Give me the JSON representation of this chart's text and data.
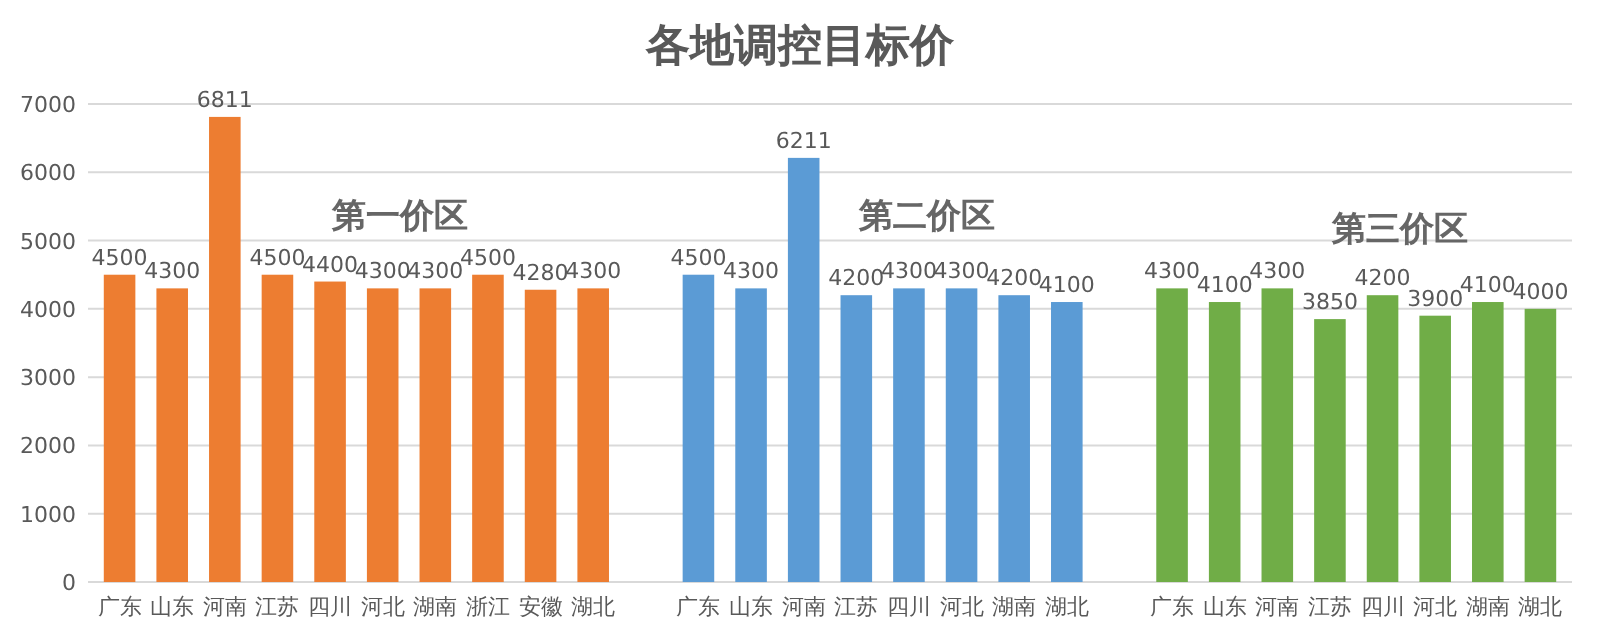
{
  "chart_data": {
    "type": "bar",
    "title": "各地调控目标价",
    "categories": [
      "广东",
      "山东",
      "河南",
      "江苏",
      "四川",
      "河北",
      "湖南",
      "浙江",
      "安徽",
      "湖北",
      null,
      "广东",
      "山东",
      "河南",
      "江苏",
      "四川",
      "河北",
      "湖南",
      "湖北",
      null,
      "广东",
      "山东",
      "河南",
      "江苏",
      "四川",
      "河北",
      "湖南",
      "湖北"
    ],
    "series": [
      {
        "name": "第一价区",
        "color": "#ed7d31",
        "values": [
          4500,
          4300,
          6811,
          4500,
          4400,
          4300,
          4300,
          4500,
          4280,
          4300,
          null,
          null,
          null,
          null,
          null,
          null,
          null,
          null,
          null,
          null,
          null,
          null,
          null,
          null,
          null,
          null,
          null,
          null
        ]
      },
      {
        "name": "第二价区",
        "color": "#5b9bd5",
        "values": [
          null,
          null,
          null,
          null,
          null,
          null,
          null,
          null,
          null,
          null,
          null,
          4500,
          4300,
          6211,
          4200,
          4300,
          4300,
          4200,
          4100,
          null,
          null,
          null,
          null,
          null,
          null,
          null,
          null,
          null
        ]
      },
      {
        "name": "第三价区",
        "color": "#70ad47",
        "values": [
          null,
          null,
          null,
          null,
          null,
          null,
          null,
          null,
          null,
          null,
          null,
          null,
          null,
          null,
          null,
          null,
          null,
          null,
          null,
          null,
          4300,
          4100,
          4300,
          3850,
          4200,
          3900,
          4100,
          4000
        ]
      }
    ],
    "ylim": [
      0,
      7000
    ],
    "yticks": [
      0,
      1000,
      2000,
      3000,
      4000,
      5000,
      6000,
      7000
    ],
    "grid": "y",
    "data_labels": true,
    "legend": false
  }
}
